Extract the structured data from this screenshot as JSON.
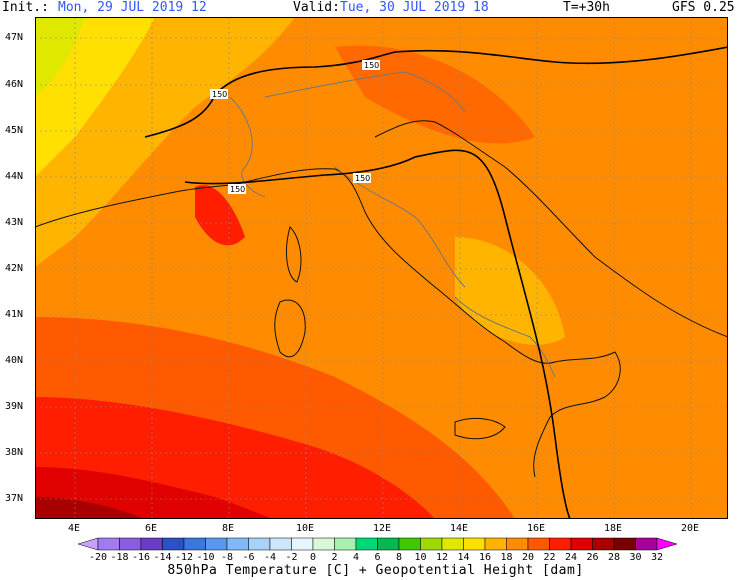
{
  "header": {
    "init_label": "Init.:",
    "init_value": "Mon, 29 JUL 2019  12",
    "valid_label": "Valid:",
    "valid_value": "Tue, 30 JUL 2019  18",
    "lead": "T=+30h",
    "model": "GFS 0.25"
  },
  "map": {
    "lat_labels": [
      "47N",
      "46N",
      "45N",
      "44N",
      "43N",
      "42N",
      "41N",
      "40N",
      "39N",
      "38N",
      "37N"
    ],
    "lon_labels": [
      "4E",
      "6E",
      "8E",
      "10E",
      "12E",
      "14E",
      "16E",
      "18E",
      "20E"
    ],
    "contour_label": "150"
  },
  "colorbar": {
    "title": "850hPa Temperature [C] + Geopotential Height [dam]",
    "ticks": [
      "-20",
      "-18",
      "-16",
      "-14",
      "-12",
      "-10",
      "-8",
      "-6",
      "-4",
      "-2",
      "0",
      "2",
      "4",
      "6",
      "8",
      "10",
      "12",
      "14",
      "16",
      "18",
      "20",
      "22",
      "24",
      "26",
      "28",
      "30",
      "32"
    ],
    "colors": [
      "#c8a0ff",
      "#a07cf0",
      "#8a5ce0",
      "#6a3cc8",
      "#2a52c8",
      "#3a78e0",
      "#5a98f0",
      "#80b8f8",
      "#a8d2fa",
      "#cce6fc",
      "#e8f6ff",
      "#d8f8d8",
      "#a8f0b0",
      "#00d878",
      "#00b850",
      "#40c800",
      "#a0d800",
      "#e0e800",
      "#ffe000",
      "#ffb400",
      "#ff8c00",
      "#ff5a00",
      "#ff1e00",
      "#e00000",
      "#a80000",
      "#780000",
      "#a8009a",
      "#ff00ff"
    ]
  }
}
